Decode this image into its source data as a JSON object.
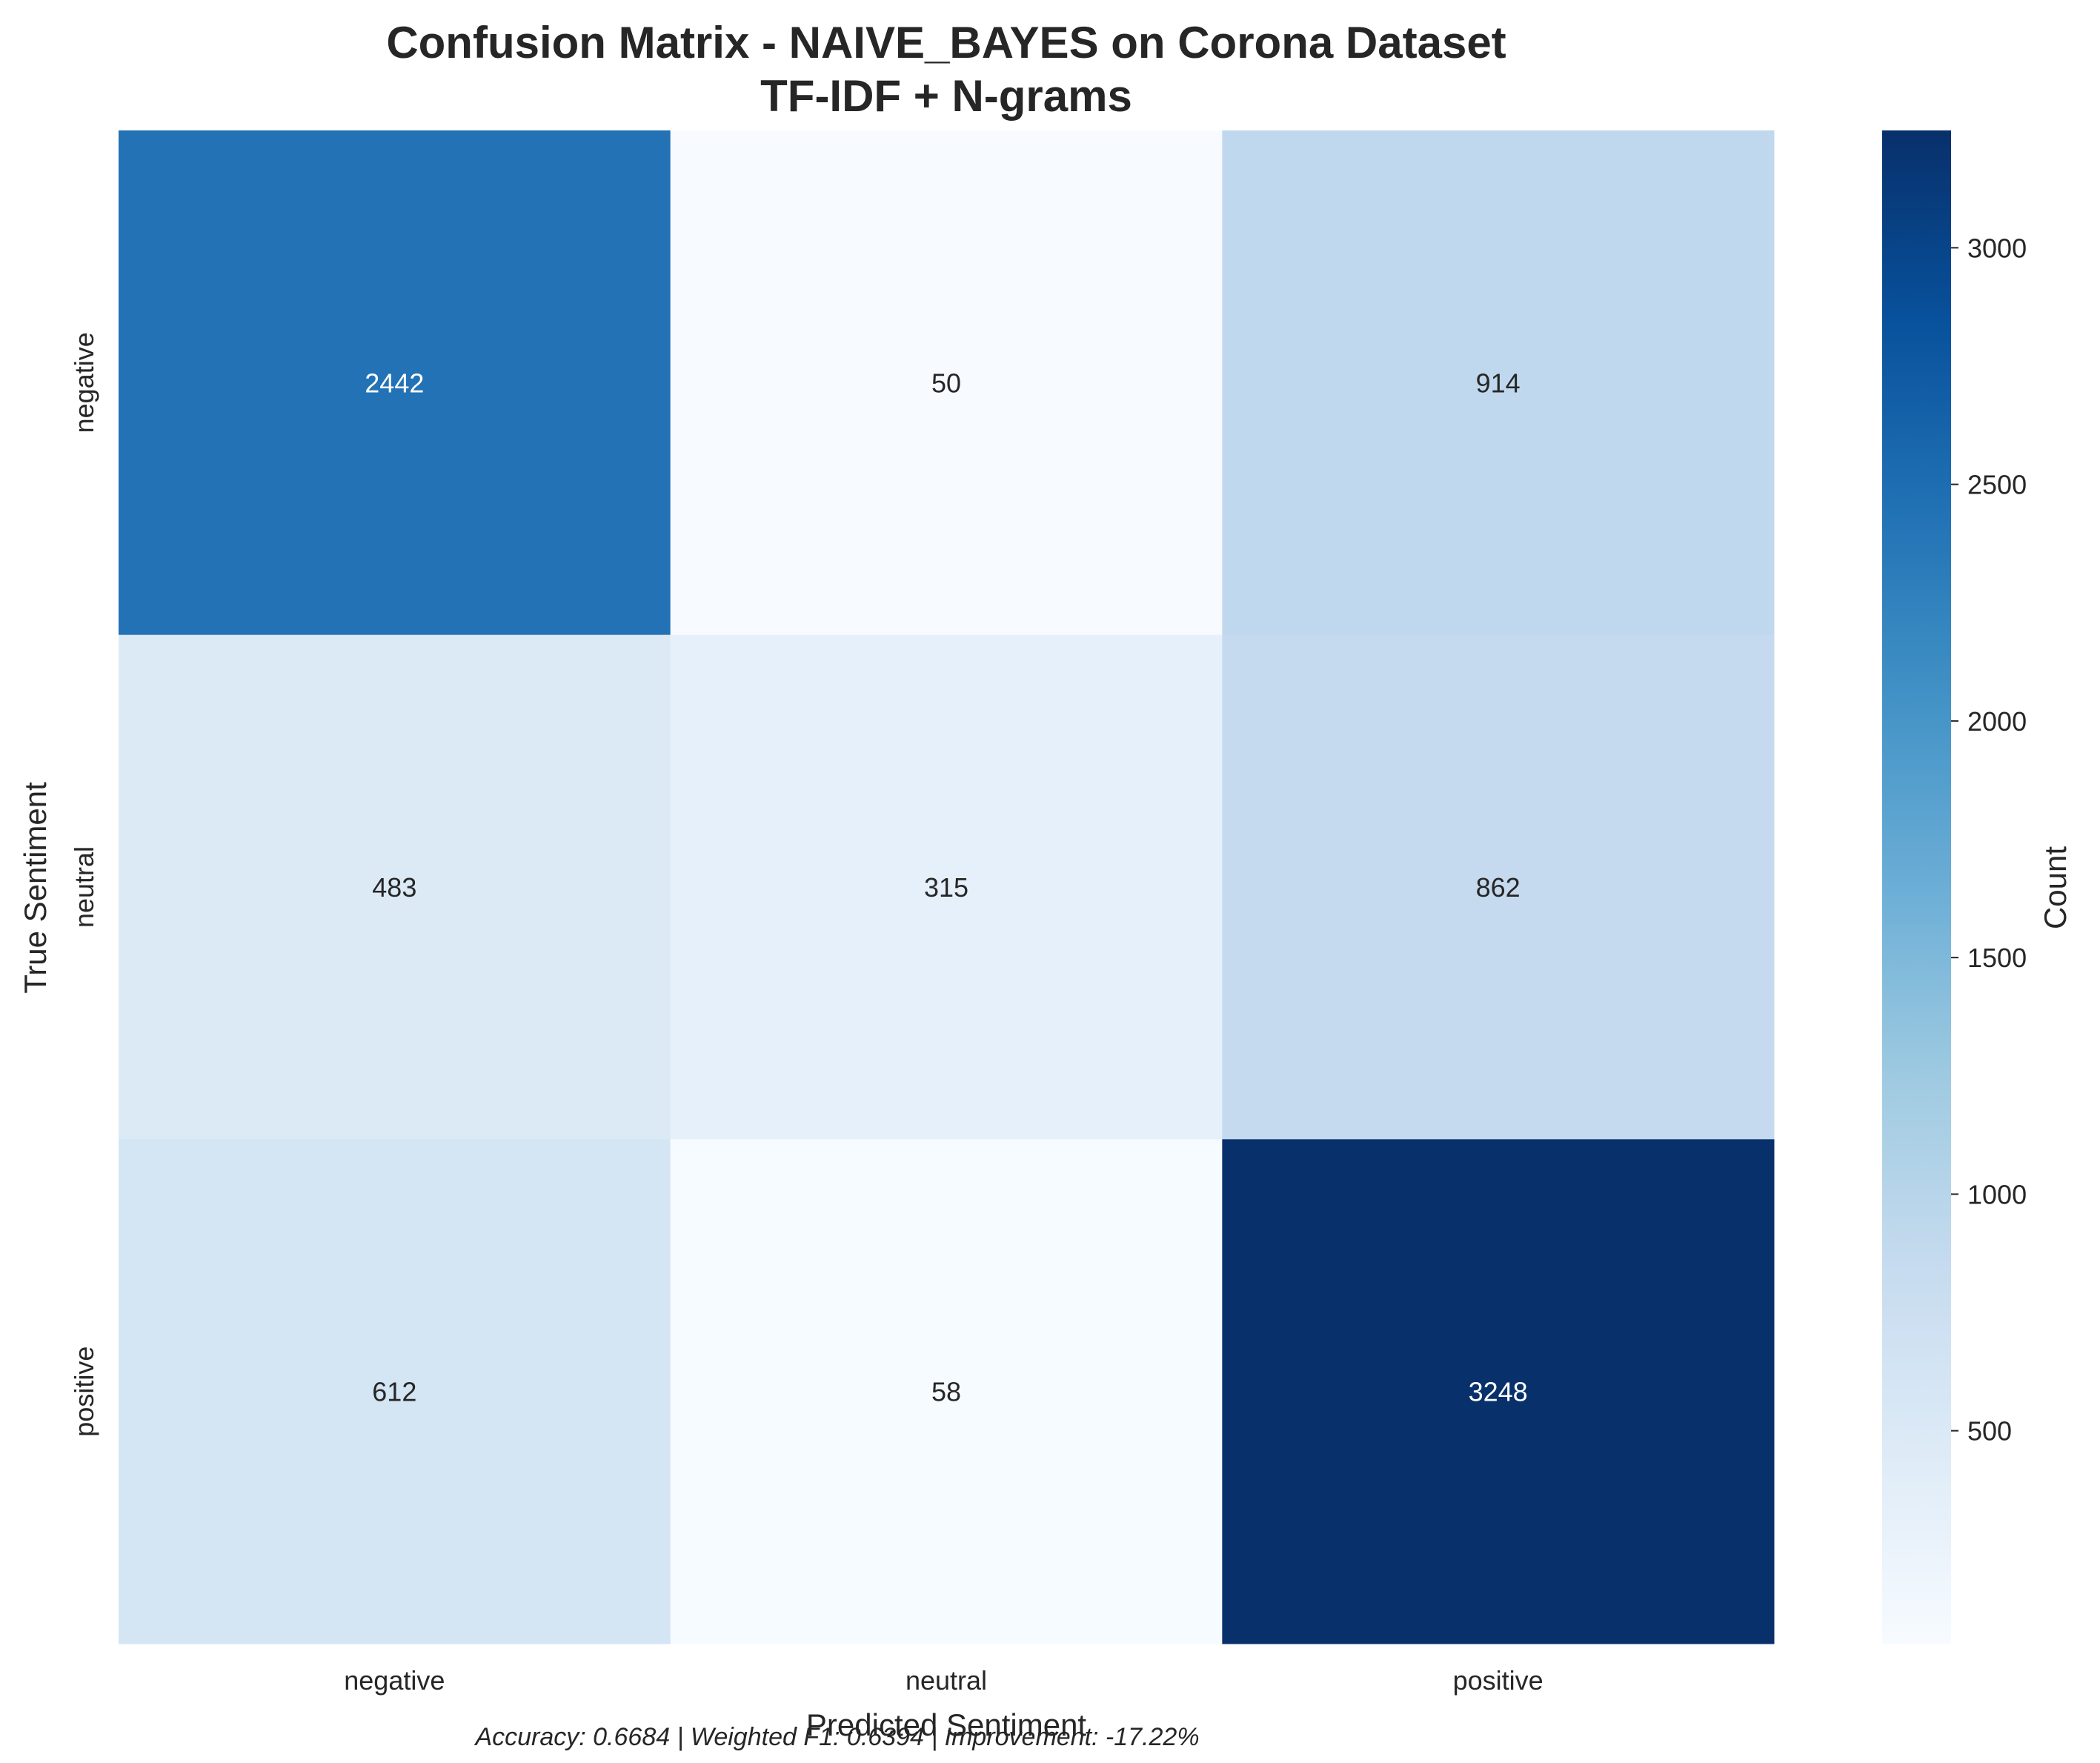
{
  "chart_data": {
    "type": "heatmap",
    "title_line1": "Confusion Matrix - NAIVE_BAYES on Corona Dataset",
    "title_line2": "TF-IDF + N-grams",
    "xlabel": "Predicted Sentiment",
    "ylabel": "True Sentiment",
    "x_categories": [
      "negative",
      "neutral",
      "positive"
    ],
    "y_categories": [
      "negative",
      "neutral",
      "positive"
    ],
    "matrix": [
      [
        2442,
        50,
        914
      ],
      [
        483,
        315,
        862
      ],
      [
        612,
        58,
        3248
      ]
    ],
    "colorbar": {
      "label": "Count",
      "ticks": [
        "500",
        "1000",
        "1500",
        "2000",
        "2500",
        "3000"
      ],
      "tick_values": [
        500,
        1000,
        1500,
        2000,
        2500,
        3000
      ],
      "min": 50,
      "max": 3248,
      "colormap": "Blues"
    },
    "footer": "Accuracy: 0.6684 | Weighted F1: 0.6394 | Improvement: -17.22%"
  }
}
